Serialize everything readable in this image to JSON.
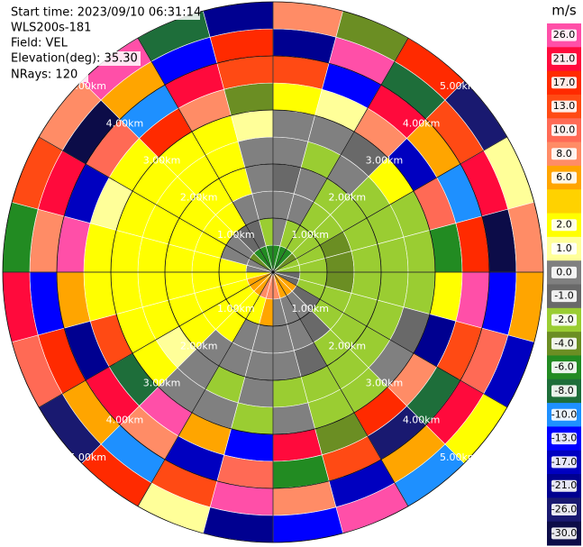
{
  "chart_data": {
    "type": "ppi",
    "info": [
      "Start time: 2023/09/10 06:31:14",
      "WLS200s-181",
      "Field: VEL",
      "Elevation(deg): 35.30",
      "NRays: 120"
    ],
    "rmax": 5,
    "rings": [
      {
        "value": 1,
        "label": "1.00km"
      },
      {
        "value": 2,
        "label": "2.00km"
      },
      {
        "value": 3,
        "label": "3.00km"
      },
      {
        "value": 4,
        "label": "4.00km"
      },
      {
        "value": 5,
        "label": "5.00km"
      }
    ],
    "colorbar": {
      "title": "m/s",
      "colors": [
        "#ff4fa8",
        "#ff0a3c",
        "#ff2a00",
        "#ff4a14",
        "#ff6a55",
        "#ff8c66",
        "#ffa500",
        "#ffd200",
        "#ffff00",
        "#ffff99",
        "#808080",
        "#696969",
        "#9acd32",
        "#6b8e23",
        "#228b22",
        "#1e6e3a",
        "#1e90ff",
        "#0000ff",
        "#0000c0",
        "#000090",
        "#191970",
        "#0c0c48"
      ],
      "ticks": [
        {
          "value": 26,
          "label": "26.0"
        },
        {
          "value": 21,
          "label": "21.0"
        },
        {
          "value": 17,
          "label": "17.0"
        },
        {
          "value": 13,
          "label": "13.0"
        },
        {
          "value": 10,
          "label": "10.0"
        },
        {
          "value": 8,
          "label": "8.0"
        },
        {
          "value": 6,
          "label": "6.0"
        },
        null,
        {
          "value": 2,
          "label": "2.0"
        },
        {
          "value": 1,
          "label": "1.0"
        },
        {
          "value": 0,
          "label": "0.0"
        },
        {
          "value": -1,
          "label": "-1.0"
        },
        {
          "value": -2,
          "label": "-2.0"
        },
        {
          "value": -4,
          "label": "-4.0"
        },
        {
          "value": -6,
          "label": "-6.0"
        },
        {
          "value": -8,
          "label": "-8.0"
        },
        {
          "value": -10,
          "label": "-10.0"
        },
        {
          "value": -13,
          "label": "-13.0"
        },
        {
          "value": -17,
          "label": "-17.0"
        },
        {
          "value": -21,
          "label": "-21.0"
        },
        {
          "value": -26,
          "label": "-26.0"
        },
        {
          "value": -30,
          "label": "-30.0"
        }
      ]
    },
    "field": [
      [
        -6,
        0,
        0,
        -1,
        0,
        0,
        2,
        13,
        -21,
        8
      ],
      [
        -6,
        -2,
        0,
        0,
        -2,
        0,
        1,
        -13,
        26,
        -4
      ],
      [
        -6,
        -2,
        -2,
        -2,
        0,
        -1,
        8,
        21,
        -8,
        17
      ],
      [
        -4,
        -2,
        -2,
        -2,
        -2,
        2,
        -17,
        6,
        13,
        -26
      ],
      [
        -2,
        -2,
        -4,
        -2,
        -2,
        -2,
        10,
        -10,
        21,
        1
      ],
      [
        -2,
        -2,
        -4,
        -2,
        -2,
        -2,
        -6,
        17,
        -30,
        8
      ],
      [
        -1,
        -2,
        -4,
        -2,
        -2,
        -2,
        2,
        26,
        -13,
        6
      ],
      [
        -1,
        -2,
        -2,
        -2,
        -2,
        -1,
        -21,
        13,
        10,
        -17
      ],
      [
        6,
        -1,
        -2,
        -2,
        -2,
        0,
        8,
        -8,
        21,
        2
      ],
      [
        6,
        0,
        -1,
        -2,
        -2,
        -2,
        17,
        -26,
        6,
        -10
      ],
      [
        6,
        0,
        0,
        -1,
        -2,
        -2,
        -4,
        13,
        -17,
        26
      ],
      [
        8,
        0,
        0,
        0,
        -2,
        0,
        21,
        -6,
        8,
        -13
      ],
      [
        8,
        6,
        0,
        0,
        0,
        -2,
        -13,
        10,
        26,
        -21
      ],
      [
        8,
        2,
        0,
        0,
        -2,
        0,
        6,
        -17,
        13,
        1
      ],
      [
        6,
        2,
        2,
        0,
        0,
        0,
        26,
        8,
        -10,
        17
      ],
      [
        6,
        2,
        2,
        2,
        1,
        2,
        -8,
        21,
        6,
        -26
      ],
      [
        6,
        2,
        2,
        2,
        2,
        2,
        13,
        -21,
        17,
        10
      ],
      [
        2,
        2,
        2,
        2,
        2,
        2,
        2,
        6,
        -13,
        21
      ],
      [
        0,
        2,
        2,
        2,
        2,
        2,
        2,
        26,
        8,
        -6
      ],
      [
        0,
        0,
        2,
        2,
        2,
        2,
        1,
        -17,
        21,
        13
      ],
      [
        -4,
        0,
        2,
        2,
        2,
        2,
        2,
        10,
        -30,
        8
      ],
      [
        -6,
        -1,
        2,
        2,
        2,
        2,
        17,
        -10,
        6,
        26
      ],
      [
        -6,
        -1,
        0,
        2,
        2,
        2,
        8,
        21,
        -13,
        -8
      ],
      [
        -6,
        -2,
        0,
        0,
        0,
        1,
        -4,
        13,
        17,
        -21
      ]
    ]
  }
}
